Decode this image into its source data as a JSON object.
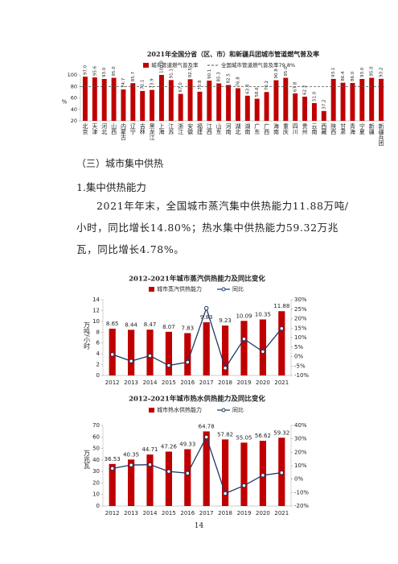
{
  "chart_data": [
    {
      "type": "bar",
      "title": "2021年全国分省（区、市）和新疆兵团城市管道燃气普及率",
      "y_label": "%",
      "categories": [
        "北京",
        "天津",
        "河北",
        "山西",
        "内蒙古",
        "辽宁",
        "吉林",
        "黑龙江",
        "上海",
        "江苏",
        "浙江",
        "安徽",
        "福建",
        "江西",
        "山东",
        "河南",
        "湖北",
        "湖南",
        "广东",
        "广西",
        "海南",
        "重庆",
        "四川",
        "贵州",
        "云南",
        "西藏",
        "陕西",
        "甘肃",
        "青海",
        "宁夏",
        "新疆",
        "新疆兵团"
      ],
      "series": [
        {
          "name": "城市管道燃气普及率",
          "color": "#c00000",
          "values": [
            97.0,
            95.6,
            93.0,
            95.0,
            74.7,
            85.7,
            72.1,
            73.9,
            100,
            91.1,
            67.0,
            92.5,
            70.8,
            90.1,
            85.3,
            82.5,
            76.8,
            63.8,
            58.6,
            70.2,
            90.8,
            95.0,
            67.8,
            62.2,
            51.0,
            37.2,
            93.1,
            86.4,
            86.0,
            93.0,
            95.0,
            93.2
          ],
          "value_labels": [
            "97.0",
            "95.6",
            "93.0",
            "95.0",
            "74.7",
            "85.7",
            "72.1",
            "73.9",
            "100.0",
            "91.1",
            "67.0",
            "92.5",
            "70.8",
            "90.1",
            "85.3",
            "82.5",
            "76.8",
            "63.8",
            "58.6",
            "70.2",
            "90.8",
            "95.0",
            "67.8",
            "62.2",
            "51.0",
            "37.2",
            "93.1",
            "86.4",
            "86.0",
            "93.0",
            "95.0",
            "93.2"
          ]
        }
      ],
      "reference": {
        "name": "全国城市管道燃气普及率79.8%",
        "value": 79.8,
        "color": "#555555"
      },
      "ylim": [
        20,
        100
      ],
      "yticks": [
        20,
        40,
        60,
        80,
        100
      ]
    },
    {
      "type": "bar-line",
      "title": "2012-2021年城市蒸汽供热能力及同比变化",
      "y_label": "万吨/小时",
      "categories": [
        "2012",
        "2013",
        "2014",
        "2015",
        "2016",
        "2017",
        "2018",
        "2019",
        "2020",
        "2021"
      ],
      "series": [
        {
          "name": "城市蒸汽供热能力",
          "color": "#c00000",
          "values": [
            8.65,
            8.44,
            8.47,
            8.07,
            7.83,
            9.83,
            9.23,
            10.09,
            10.35,
            11.88
          ]
        },
        {
          "name": "同比",
          "color": "#1f3864",
          "axis": "y2",
          "values": [
            1.1,
            -2.4,
            0.4,
            -4.7,
            -3.0,
            25.5,
            -6.1,
            9.3,
            2.6,
            14.8
          ]
        }
      ],
      "ylim": [
        0,
        14
      ],
      "yticks": [
        0,
        2,
        4,
        6,
        8,
        10,
        12,
        14
      ],
      "y2lim": [
        -10,
        30
      ],
      "y2ticks": [
        {
          "value": -10,
          "label": "-10%"
        },
        {
          "value": -5,
          "label": "-5%"
        },
        {
          "value": 0,
          "label": "0%"
        },
        {
          "value": 5,
          "label": "5%"
        },
        {
          "value": 10,
          "label": "10%"
        },
        {
          "value": 15,
          "label": "15%"
        },
        {
          "value": 20,
          "label": "20%"
        },
        {
          "value": 25,
          "label": "25%"
        },
        {
          "value": 30,
          "label": "30%"
        }
      ]
    },
    {
      "type": "bar-line",
      "title": "2012-2021年城市热水供热能力及同比变化",
      "y_label": "万兆瓦",
      "categories": [
        "2012",
        "2013",
        "2014",
        "2015",
        "2016",
        "2017",
        "2018",
        "2019",
        "2020",
        "2021"
      ],
      "series": [
        {
          "name": "城市热水供热能力",
          "color": "#c00000",
          "values": [
            36.53,
            40.35,
            44.71,
            47.26,
            49.33,
            64.78,
            57.82,
            55.05,
            56.62,
            59.32
          ]
        },
        {
          "name": "同比",
          "color": "#1f3864",
          "axis": "y2",
          "values": [
            8.0,
            10.5,
            10.8,
            5.7,
            4.4,
            31.3,
            -10.7,
            -4.8,
            2.9,
            4.78
          ]
        }
      ],
      "ylim": [
        0,
        70
      ],
      "yticks": [
        0,
        10,
        20,
        30,
        40,
        50,
        60,
        70
      ],
      "y2lim": [
        -20,
        40
      ],
      "y2ticks": [
        {
          "value": -20,
          "label": "-20%"
        },
        {
          "value": -10,
          "label": "-10%"
        },
        {
          "value": 0,
          "label": "0%"
        },
        {
          "value": 10,
          "label": "10%"
        },
        {
          "value": 20,
          "label": "20%"
        },
        {
          "value": 30,
          "label": "30%"
        },
        {
          "value": 40,
          "label": "40%"
        }
      ]
    }
  ],
  "section_heading": "（三）城市集中供热",
  "subheading": "1.集中供热能力",
  "paragraph": "2021年年末，全国城市蒸汽集中供热能力11.88万吨/小时，同比增长14.80%；热水集中供热能力59.32万兆瓦，同比增长4.78%。",
  "page_number": "14"
}
